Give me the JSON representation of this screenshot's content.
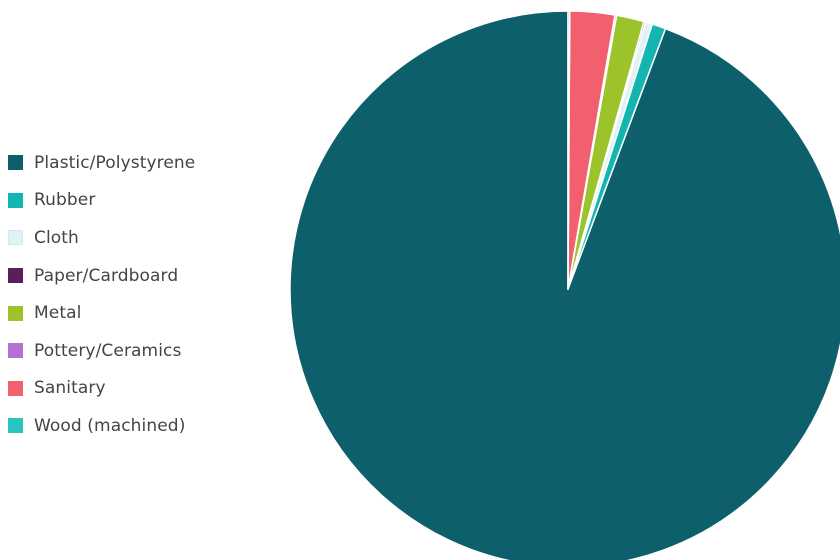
{
  "chart_data": {
    "type": "pie",
    "title": "",
    "legend_position": "left",
    "start_angle": "top",
    "direction": "counterclockwise",
    "categories": [
      "Plastic/Polystyrene",
      "Rubber",
      "Cloth",
      "Paper/Cardboard",
      "Metal",
      "Pottery/Ceramics",
      "Sanitary",
      "Wood (machined)"
    ],
    "values": [
      94.3,
      0.8,
      0.4,
      0.1,
      1.6,
      0.1,
      2.6,
      0.1
    ],
    "colors": [
      "#0d5f6b",
      "#13b5b0",
      "#dff3f5",
      "#5a1f5a",
      "#9cc42a",
      "#b36fd1",
      "#f2606f",
      "#29c5bd"
    ]
  }
}
